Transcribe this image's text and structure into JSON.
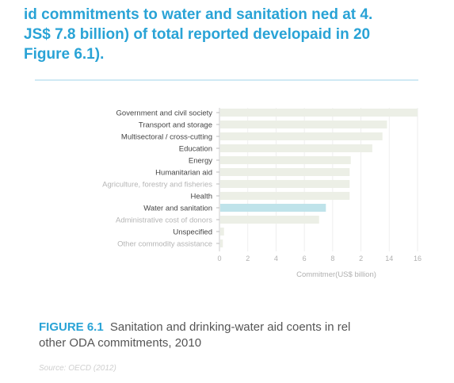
{
  "heading": {
    "line1": "id commitments to water and sanitation ned at 4.",
    "line2": "JS$ 7.8 billion) of total reported developaid in 20",
    "line3": "Figure 6.1)."
  },
  "caption": {
    "figure_label": "FIGURE 6.1",
    "text_line1": "Sanitation and drinking-water aid coents in rel",
    "text_line2": "other ODA commitments, 2010"
  },
  "source": "Source: OECD (2012)",
  "colors": {
    "accent": "#29a3d6",
    "highlight_bar": "#bfe3ea",
    "bar": "#ecefe6",
    "label_dark": "#444444",
    "label_light": "#b5b5b5"
  },
  "chart_data": {
    "type": "bar",
    "orientation": "horizontal",
    "categories": [
      "Government and civil society",
      "Transport and storage",
      "Multisectoral / cross-cutting",
      "Education",
      "Energy",
      "Humanitarian aid",
      "Agriculture, forestry and fisheries",
      "Health",
      "Water and sanitation",
      "Administrative cost of donors",
      "Unspecified",
      "Other commodity assistance"
    ],
    "values": [
      17.5,
      14.8,
      14.4,
      13.5,
      11.6,
      11.5,
      11.5,
      11.5,
      9.4,
      8.8,
      0.4,
      0.3
    ],
    "highlight": "Water and sanitation",
    "faded": [
      "Agriculture, forestry and fisheries",
      "Administrative cost of donors",
      "Other commodity assistance"
    ],
    "xticks": [
      "0",
      "2",
      "4",
      "6",
      "8",
      "2",
      "14",
      "16"
    ],
    "xlim": [
      0,
      17.5
    ],
    "xlabel": "Commitmer(US$ billion)",
    "grid": true
  }
}
